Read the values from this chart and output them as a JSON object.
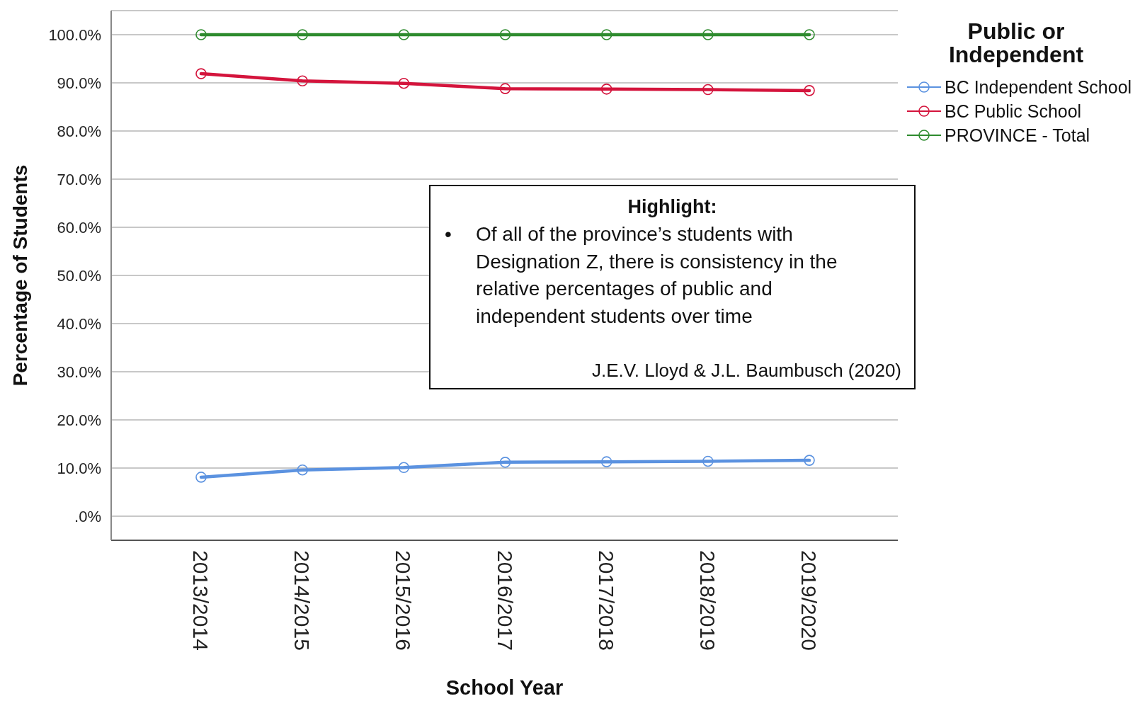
{
  "chart_data": {
    "type": "line",
    "xlabel": "School Year",
    "ylabel": "Percentage of Students",
    "legend_title": "Public or Independent",
    "categories": [
      "2013/2014",
      "2014/2015",
      "2015/2016",
      "2016/2017",
      "2017/2018",
      "2018/2019",
      "2019/2020"
    ],
    "series": [
      {
        "name": "BC Independent School",
        "color": "#5b92e0",
        "values": [
          8.1,
          9.6,
          10.1,
          11.2,
          11.3,
          11.4,
          11.6
        ]
      },
      {
        "name": "BC Public School",
        "color": "#d4143c",
        "values": [
          91.9,
          90.4,
          89.9,
          88.8,
          88.7,
          88.6,
          88.4
        ]
      },
      {
        "name": "PROVINCE - Total",
        "color": "#2e8b2e",
        "values": [
          100,
          100,
          100,
          100,
          100,
          100,
          100
        ]
      }
    ],
    "ylim": [
      -5,
      105
    ],
    "yticks": [
      {
        "value": 0,
        "label": ".0%"
      },
      {
        "value": 10,
        "label": "10.0%"
      },
      {
        "value": 20,
        "label": "20.0%"
      },
      {
        "value": 30,
        "label": "30.0%"
      },
      {
        "value": 40,
        "label": "40.0%"
      },
      {
        "value": 50,
        "label": "50.0%"
      },
      {
        "value": 60,
        "label": "60.0%"
      },
      {
        "value": 70,
        "label": "70.0%"
      },
      {
        "value": 80,
        "label": "80.0%"
      },
      {
        "value": 90,
        "label": "90.0%"
      },
      {
        "value": 100,
        "label": "100.0%"
      }
    ],
    "grid": "y",
    "legend": "top right",
    "marker": "circle",
    "line_style": "solid",
    "annotations": [
      "Highlight:",
      "• Of all of the province’s students with Designation Z, there is consistency in the relative percentages of public and independent students over time",
      "J.E.V. Lloyd & J.L. Baumbusch (2020)"
    ]
  }
}
